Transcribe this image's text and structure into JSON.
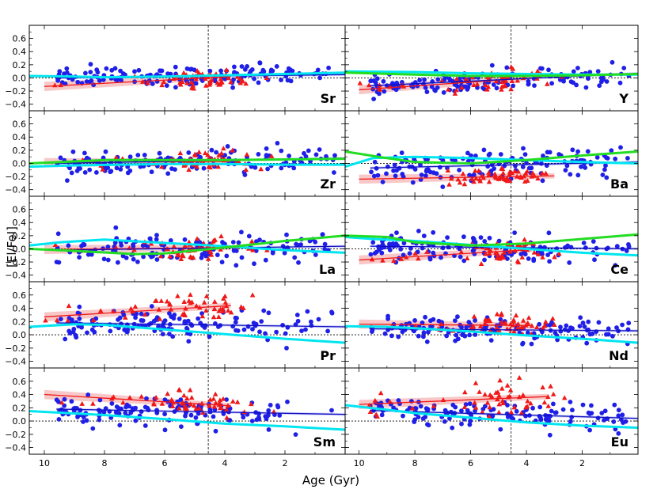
{
  "chart_data": {
    "type": "scatter",
    "description_note": "10-panel grid of abundance ratio vs stellar age",
    "xlabel": "Age (Gyr)",
    "ylabel": "[El/FeI]",
    "xlim": [
      10.5,
      0
    ],
    "ylim": [
      -0.5,
      0.8
    ],
    "xticks": [
      10,
      8,
      6,
      4,
      2
    ],
    "yticks": [
      -0.4,
      -0.2,
      0.0,
      0.2,
      0.4,
      0.6
    ],
    "ytick_labels": [
      "−0.4",
      "−0.2",
      "0.0",
      "0.2",
      "0.4",
      "0.6"
    ],
    "vline_age": 4.55,
    "hline_value": 0.0,
    "colors": {
      "blue": "#1f1fe8",
      "red": "#f01818",
      "cyan": "#00e5f0",
      "green": "#22dd22",
      "red_band": "#f5b5b5",
      "blue_band": "#c4c4ff"
    },
    "panels": [
      {
        "element": "Sr",
        "blue_fit": [
          [
            9.6,
            0.0
          ],
          [
            0.0,
            0.05
          ]
        ],
        "red_fit": [
          [
            10.0,
            -0.13
          ],
          [
            3.8,
            0.02
          ]
        ],
        "blue_center": 0.02,
        "blue_spread": 0.09,
        "red_center": -0.05,
        "red_spread": 0.1,
        "red_age_range": [
          10.0,
          3.8
        ],
        "cyan": [
          [
            10.5,
            0.03
          ],
          [
            9.0,
            0.02
          ],
          [
            8.0,
            0.01
          ],
          [
            6.0,
            0.02
          ],
          [
            4.0,
            0.04
          ],
          [
            2.0,
            0.06
          ],
          [
            0.0,
            0.08
          ]
        ],
        "green": null
      },
      {
        "element": "Y",
        "blue_fit": [
          [
            9.6,
            -0.12
          ],
          [
            0.0,
            0.07
          ]
        ],
        "red_fit": [
          [
            10.0,
            -0.18
          ],
          [
            3.8,
            0.0
          ]
        ],
        "blue_center": 0.0,
        "blue_spread": 0.1,
        "red_center": -0.07,
        "red_spread": 0.1,
        "red_age_range": [
          10.0,
          3.8
        ],
        "cyan": [
          [
            10.5,
            0.1
          ],
          [
            8.0,
            0.09
          ],
          [
            6.0,
            0.07
          ],
          [
            4.0,
            0.06
          ],
          [
            2.0,
            0.05
          ],
          [
            0.0,
            0.05
          ]
        ],
        "green": [
          [
            10.5,
            0.08
          ],
          [
            8.0,
            0.05
          ],
          [
            6.0,
            0.03
          ],
          [
            4.0,
            0.03
          ],
          [
            2.0,
            0.04
          ],
          [
            0.0,
            0.06
          ]
        ]
      },
      {
        "element": "Zr",
        "blue_fit": [
          [
            9.6,
            0.0
          ],
          [
            0.0,
            0.08
          ]
        ],
        "red_fit": [
          [
            10.0,
            0.01
          ],
          [
            3.8,
            0.03
          ]
        ],
        "blue_center": 0.04,
        "blue_spread": 0.1,
        "red_center": 0.05,
        "red_spread": 0.12,
        "red_age_range": [
          10.0,
          3.8
        ],
        "cyan": [
          [
            10.5,
            -0.05
          ],
          [
            9.0,
            -0.03
          ],
          [
            6.0,
            -0.01
          ],
          [
            4.0,
            -0.01
          ],
          [
            2.0,
            -0.02
          ],
          [
            0.0,
            -0.02
          ]
        ],
        "green": [
          [
            10.5,
            0.0
          ],
          [
            8.0,
            0.05
          ],
          [
            6.0,
            0.05
          ],
          [
            4.0,
            0.05
          ],
          [
            2.0,
            0.06
          ],
          [
            0.0,
            0.07
          ]
        ]
      },
      {
        "element": "Ba",
        "blue_fit": [
          [
            9.6,
            -0.07
          ],
          [
            0.0,
            0.02
          ]
        ],
        "red_fit": [
          [
            10.0,
            -0.24
          ],
          [
            3.0,
            -0.19
          ]
        ],
        "blue_center": -0.01,
        "blue_spread": 0.11,
        "red_center": -0.18,
        "red_spread": 0.08,
        "red_age_range": [
          7.0,
          4.5
        ],
        "cyan": [
          [
            10.5,
            -0.05
          ],
          [
            9.5,
            0.08
          ],
          [
            8.0,
            0.1
          ],
          [
            6.0,
            0.08
          ],
          [
            4.0,
            0.05
          ],
          [
            2.0,
            0.02
          ],
          [
            0.0,
            0.0
          ]
        ],
        "green": [
          [
            10.5,
            0.18
          ],
          [
            9.0,
            0.08
          ],
          [
            8.0,
            0.02
          ],
          [
            6.0,
            0.0
          ],
          [
            4.0,
            0.05
          ],
          [
            2.0,
            0.12
          ],
          [
            0.0,
            0.18
          ]
        ]
      },
      {
        "element": "La",
        "blue_fit": [
          [
            9.6,
            -0.02
          ],
          [
            0.0,
            0.04
          ]
        ],
        "red_fit": [
          [
            10.0,
            -0.01
          ],
          [
            3.8,
            0.02
          ]
        ],
        "blue_center": 0.02,
        "blue_spread": 0.11,
        "red_center": 0.02,
        "red_spread": 0.1,
        "red_age_range": [
          10.0,
          3.8
        ],
        "cyan": [
          [
            10.5,
            0.05
          ],
          [
            9.5,
            0.1
          ],
          [
            8.0,
            0.14
          ],
          [
            6.0,
            0.09
          ],
          [
            4.0,
            0.04
          ],
          [
            2.0,
            -0.02
          ],
          [
            0.0,
            -0.06
          ]
        ],
        "green": [
          [
            10.5,
            0.0
          ],
          [
            9.0,
            -0.03
          ],
          [
            7.0,
            -0.08
          ],
          [
            6.0,
            -0.07
          ],
          [
            4.0,
            0.02
          ],
          [
            2.0,
            0.12
          ],
          [
            0.0,
            0.2
          ]
        ]
      },
      {
        "element": "Ce",
        "blue_fit": [
          [
            9.6,
            0.04
          ],
          [
            0.0,
            0.0
          ]
        ],
        "red_fit": [
          [
            10.0,
            -0.17
          ],
          [
            3.8,
            -0.01
          ]
        ],
        "blue_center": 0.02,
        "blue_spread": 0.1,
        "red_center": -0.06,
        "red_spread": 0.1,
        "red_age_range": [
          10.0,
          4.5
        ],
        "cyan": [
          [
            10.5,
            0.18
          ],
          [
            9.5,
            0.15
          ],
          [
            8.0,
            0.12
          ],
          [
            6.0,
            0.06
          ],
          [
            4.0,
            0.0
          ],
          [
            2.0,
            -0.06
          ],
          [
            0.0,
            -0.1
          ]
        ],
        "green": [
          [
            10.5,
            0.2
          ],
          [
            9.0,
            0.18
          ],
          [
            8.0,
            0.1
          ],
          [
            6.0,
            0.05
          ],
          [
            4.0,
            0.08
          ],
          [
            2.0,
            0.15
          ],
          [
            0.0,
            0.22
          ]
        ]
      },
      {
        "element": "Pr",
        "blue_fit": [
          [
            9.6,
            0.18
          ],
          [
            0.0,
            0.12
          ]
        ],
        "red_fit": [
          [
            10.0,
            0.27
          ],
          [
            3.8,
            0.44
          ]
        ],
        "blue_center": 0.16,
        "blue_spread": 0.11,
        "red_center": 0.36,
        "red_spread": 0.12,
        "red_age_range": [
          10.0,
          3.8
        ],
        "cyan": [
          [
            10.5,
            0.12
          ],
          [
            9.0,
            0.16
          ],
          [
            8.0,
            0.15
          ],
          [
            6.0,
            0.08
          ],
          [
            4.0,
            0.01
          ],
          [
            2.0,
            -0.06
          ],
          [
            0.0,
            -0.12
          ]
        ],
        "green": null
      },
      {
        "element": "Nd",
        "blue_fit": [
          [
            9.6,
            0.09
          ],
          [
            0.0,
            0.06
          ]
        ],
        "red_fit": [
          [
            10.0,
            0.16
          ],
          [
            3.8,
            0.14
          ]
        ],
        "blue_center": 0.09,
        "blue_spread": 0.1,
        "red_center": 0.17,
        "red_spread": 0.1,
        "red_age_range": [
          9.0,
          3.8
        ],
        "cyan": [
          [
            10.5,
            0.13
          ],
          [
            9.0,
            0.12
          ],
          [
            8.0,
            0.1
          ],
          [
            6.0,
            0.05
          ],
          [
            4.0,
            -0.01
          ],
          [
            2.0,
            -0.06
          ],
          [
            0.0,
            -0.12
          ]
        ],
        "green": null
      },
      {
        "element": "Sm",
        "blue_fit": [
          [
            9.6,
            0.18
          ],
          [
            0.0,
            0.1
          ]
        ],
        "red_fit": [
          [
            10.0,
            0.4
          ],
          [
            3.8,
            0.23
          ]
        ],
        "blue_center": 0.16,
        "blue_spread": 0.11,
        "red_center": 0.3,
        "red_spread": 0.1,
        "red_age_range": [
          10.0,
          3.8
        ],
        "cyan": [
          [
            10.5,
            0.15
          ],
          [
            8.0,
            0.09
          ],
          [
            6.0,
            0.03
          ],
          [
            4.0,
            -0.04
          ],
          [
            2.0,
            -0.08
          ],
          [
            0.0,
            -0.13
          ]
        ],
        "green": null
      },
      {
        "element": "Eu",
        "blue_fit": [
          [
            9.6,
            0.16
          ],
          [
            0.0,
            0.04
          ]
        ],
        "red_fit": [
          [
            10.0,
            0.25
          ],
          [
            3.2,
            0.37
          ]
        ],
        "blue_center": 0.1,
        "blue_spread": 0.1,
        "red_center": 0.35,
        "red_spread": 0.15,
        "red_age_range": [
          10.0,
          3.2
        ],
        "cyan": [
          [
            10.5,
            0.24
          ],
          [
            9.0,
            0.17
          ],
          [
            8.0,
            0.12
          ],
          [
            6.0,
            0.05
          ],
          [
            4.0,
            -0.02
          ],
          [
            2.0,
            -0.07
          ],
          [
            0.0,
            -0.1
          ]
        ],
        "green": null
      }
    ]
  }
}
